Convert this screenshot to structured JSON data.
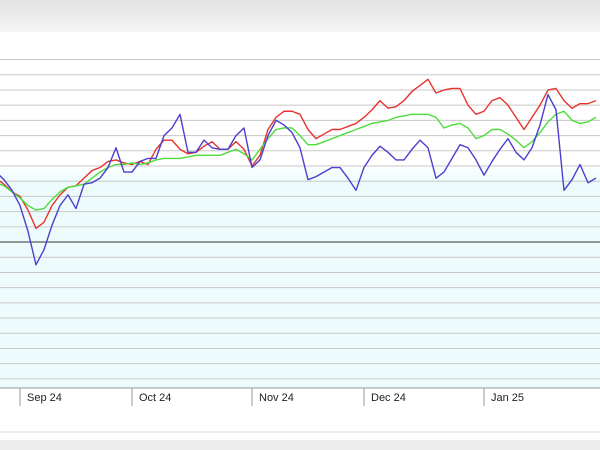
{
  "chart_data": {
    "type": "line",
    "categories": [
      null,
      null,
      null,
      "Sep 24",
      null,
      null,
      null,
      null,
      null,
      null,
      null,
      null,
      null,
      null,
      null,
      null,
      null,
      "Oct 24",
      null,
      null,
      null,
      null,
      null,
      null,
      null,
      null,
      null,
      null,
      null,
      null,
      null,
      null,
      "Nov 24",
      null,
      null,
      null,
      null,
      null,
      null,
      null,
      null,
      null,
      null,
      null,
      null,
      null,
      "Dec 24",
      null,
      null,
      null,
      null,
      null,
      null,
      null,
      null,
      null,
      null,
      null,
      null,
      null,
      null,
      "Jan 25",
      null,
      null,
      null,
      null,
      null,
      null,
      null,
      null,
      null,
      null,
      null,
      null,
      null,
      null
    ],
    "series": [
      {
        "color": "#e8322f",
        "values": [
          4.2,
          3.8,
          3.3,
          3.0,
          2.1,
          0.9,
          1.3,
          2.4,
          3.1,
          3.6,
          3.7,
          4.2,
          4.7,
          4.9,
          5.3,
          5.4,
          5.2,
          5.1,
          5.3,
          5.1,
          6.1,
          6.7,
          6.7,
          6.1,
          5.8,
          5.9,
          6.3,
          6.6,
          6.1,
          6.1,
          6.6,
          6.1,
          5.0,
          5.7,
          7.4,
          8.2,
          8.6,
          8.6,
          8.4,
          7.4,
          6.8,
          7.1,
          7.4,
          7.4,
          7.6,
          7.8,
          8.2,
          8.7,
          9.3,
          8.8,
          8.9,
          9.3,
          9.9,
          10.3,
          10.7,
          9.8,
          10.0,
          10.1,
          10.1,
          9.0,
          8.4,
          8.6,
          9.3,
          9.5,
          9.0,
          8.2,
          7.4,
          8.2,
          9.0,
          10.0,
          10.1,
          9.3,
          8.8,
          9.1,
          9.1,
          9.3
        ]
      },
      {
        "color": "#4ddc3a",
        "values": [
          3.9,
          3.7,
          3.3,
          2.9,
          2.4,
          2.1,
          2.2,
          2.8,
          3.3,
          3.6,
          3.7,
          3.8,
          4.2,
          4.6,
          4.9,
          5.1,
          5.1,
          5.2,
          5.1,
          5.2,
          5.4,
          5.5,
          5.5,
          5.5,
          5.6,
          5.7,
          5.7,
          5.7,
          5.7,
          5.9,
          6.1,
          5.8,
          5.4,
          6.1,
          6.8,
          7.4,
          7.5,
          7.5,
          7.0,
          6.4,
          6.4,
          6.6,
          6.8,
          7.0,
          7.2,
          7.4,
          7.6,
          7.8,
          7.9,
          8.0,
          8.2,
          8.3,
          8.4,
          8.4,
          8.4,
          8.2,
          7.5,
          7.7,
          7.8,
          7.5,
          6.8,
          7.0,
          7.4,
          7.4,
          7.1,
          6.7,
          6.2,
          6.6,
          7.2,
          7.9,
          8.4,
          8.6,
          8.0,
          7.8,
          7.9,
          8.2
        ]
      },
      {
        "color": "#4a3fcf",
        "values": [
          4.6,
          4.1,
          3.4,
          2.4,
          0.7,
          -1.5,
          -0.5,
          1.1,
          2.4,
          3.1,
          2.2,
          3.8,
          3.9,
          4.2,
          4.9,
          6.2,
          4.6,
          4.6,
          5.3,
          5.5,
          5.5,
          7.0,
          7.5,
          8.4,
          5.9,
          5.9,
          6.7,
          6.2,
          6.1,
          6.1,
          7.0,
          7.5,
          4.9,
          5.4,
          7.0,
          8.0,
          7.7,
          7.2,
          6.2,
          4.1,
          4.3,
          4.6,
          4.9,
          4.9,
          4.2,
          3.4,
          4.9,
          5.7,
          6.3,
          5.9,
          5.4,
          5.4,
          6.1,
          6.7,
          6.2,
          4.2,
          4.6,
          5.5,
          6.4,
          6.2,
          5.4,
          4.4,
          5.3,
          6.1,
          6.8,
          5.9,
          5.4,
          6.2,
          7.7,
          9.7,
          8.7,
          3.4,
          4.1,
          5.1,
          3.9,
          4.2
        ]
      }
    ],
    "ylim": [
      -9.6,
      12.3
    ],
    "yticks": [
      -9,
      -8,
      -7,
      -6,
      -5,
      -4,
      -3,
      -2,
      -1,
      0,
      1,
      2,
      3,
      4,
      5,
      6,
      7,
      8,
      9,
      10,
      11,
      12
    ],
    "grid": true,
    "baseline": 0
  }
}
